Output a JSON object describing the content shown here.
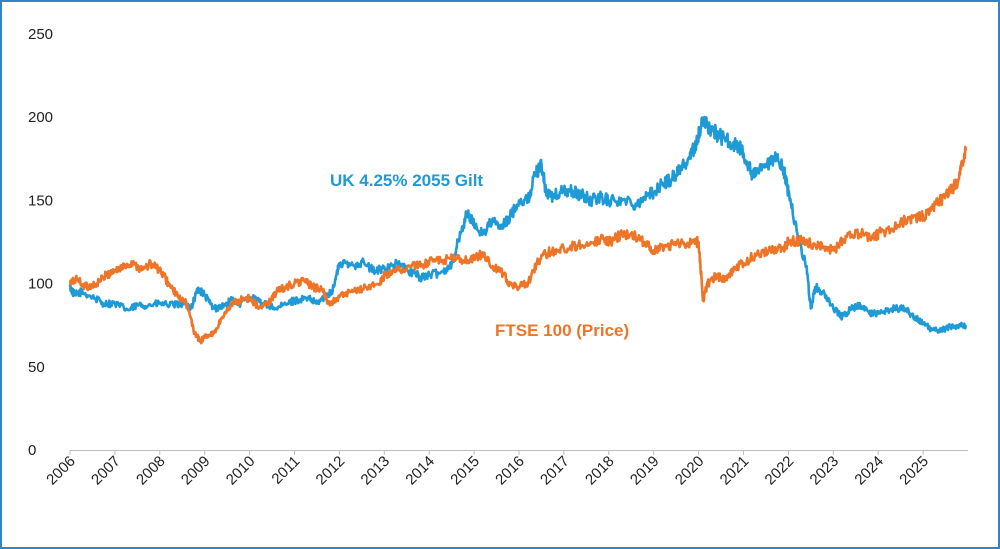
{
  "chart_data": {
    "type": "line",
    "title": "",
    "xlabel": "",
    "ylabel": "",
    "ylim": [
      0,
      250
    ],
    "xlim": [
      2006,
      2026
    ],
    "y_ticks": [
      "0",
      "50",
      "100",
      "150",
      "200",
      "250"
    ],
    "x_ticks": [
      "2006",
      "2007",
      "2008",
      "2009",
      "2010",
      "2011",
      "2012",
      "2013",
      "2014",
      "2015",
      "2016",
      "2017",
      "2018",
      "2019",
      "2020",
      "2021",
      "2022",
      "2023",
      "2024",
      "2025"
    ],
    "grid": false,
    "legend": "inline-labels",
    "series": [
      {
        "name": "UK 4.25% 2055 Gilt",
        "color": "#1E9AD6",
        "x": [
          2006.0,
          2006.1,
          2006.25,
          2006.5,
          2006.75,
          2007.0,
          2007.3,
          2007.5,
          2007.75,
          2008.0,
          2008.3,
          2008.5,
          2008.7,
          2008.85,
          2009.0,
          2009.2,
          2009.45,
          2009.6,
          2009.8,
          2010.0,
          2010.3,
          2010.6,
          2010.85,
          2011.0,
          2011.3,
          2011.5,
          2011.7,
          2011.85,
          2012.0,
          2012.3,
          2012.5,
          2012.8,
          2013.0,
          2013.3,
          2013.5,
          2013.8,
          2014.0,
          2014.3,
          2014.5,
          2014.7,
          2014.85,
          2015.0,
          2015.2,
          2015.4,
          2015.6,
          2015.8,
          2016.0,
          2016.2,
          2016.35,
          2016.5,
          2016.6,
          2016.75,
          2017.0,
          2017.2,
          2017.4,
          2017.6,
          2017.8,
          2018.0,
          2018.3,
          2018.6,
          2018.8,
          2019.0,
          2019.2,
          2019.4,
          2019.6,
          2019.8,
          2019.95,
          2020.1,
          2020.2,
          2020.3,
          2020.5,
          2020.7,
          2020.9,
          2021.0,
          2021.2,
          2021.4,
          2021.6,
          2021.75,
          2021.9,
          2022.0,
          2022.2,
          2022.4,
          2022.5,
          2022.6,
          2022.75,
          2023.0,
          2023.2,
          2023.4,
          2023.6,
          2023.8,
          2024.0,
          2024.3,
          2024.6,
          2024.8,
          2025.0,
          2025.2,
          2025.4,
          2025.6,
          2025.8,
          2025.95
        ],
        "values": [
          98,
          93,
          95,
          92,
          88,
          88,
          84,
          87,
          87,
          88,
          87,
          88,
          86,
          97,
          93,
          85,
          87,
          90,
          88,
          92,
          88,
          85,
          88,
          90,
          91,
          88,
          93,
          96,
          112,
          111,
          113,
          107,
          110,
          112,
          108,
          104,
          105,
          107,
          112,
          130,
          143,
          135,
          130,
          138,
          133,
          140,
          150,
          150,
          165,
          172,
          155,
          152,
          156,
          155,
          153,
          150,
          152,
          150,
          150,
          148,
          152,
          155,
          160,
          163,
          170,
          175,
          185,
          198,
          195,
          192,
          188,
          185,
          182,
          178,
          165,
          168,
          172,
          176,
          168,
          155,
          130,
          110,
          85,
          98,
          95,
          85,
          80,
          85,
          87,
          82,
          82,
          85,
          85,
          80,
          76,
          72,
          72,
          74,
          75,
          75
        ]
      },
      {
        "name": "FTSE 100 (Price)",
        "color": "#EE7528",
        "x": [
          2006.0,
          2006.15,
          2006.35,
          2006.6,
          2006.8,
          2007.0,
          2007.2,
          2007.4,
          2007.6,
          2007.8,
          2008.0,
          2008.2,
          2008.4,
          2008.6,
          2008.75,
          2008.9,
          2009.0,
          2009.2,
          2009.4,
          2009.6,
          2009.8,
          2010.0,
          2010.2,
          2010.4,
          2010.6,
          2010.8,
          2011.0,
          2011.2,
          2011.4,
          2011.6,
          2011.75,
          2012.0,
          2012.3,
          2012.6,
          2012.9,
          2013.0,
          2013.3,
          2013.6,
          2013.9,
          2014.0,
          2014.3,
          2014.6,
          2014.9,
          2015.0,
          2015.2,
          2015.4,
          2015.6,
          2015.8,
          2016.0,
          2016.2,
          2016.4,
          2016.6,
          2016.8,
          2017.0,
          2017.3,
          2017.6,
          2017.9,
          2018.0,
          2018.3,
          2018.6,
          2018.8,
          2019.0,
          2019.3,
          2019.6,
          2019.9,
          2020.0,
          2020.1,
          2020.2,
          2020.4,
          2020.6,
          2020.8,
          2021.0,
          2021.3,
          2021.6,
          2021.9,
          2022.0,
          2022.3,
          2022.6,
          2022.8,
          2023.0,
          2023.3,
          2023.6,
          2023.9,
          2024.0,
          2024.3,
          2024.6,
          2024.9,
          2025.0,
          2025.2,
          2025.4,
          2025.6,
          2025.8,
          2025.95
        ],
        "values": [
          100,
          103,
          98,
          100,
          105,
          108,
          110,
          113,
          108,
          112,
          108,
          100,
          92,
          88,
          72,
          65,
          68,
          70,
          80,
          88,
          90,
          92,
          85,
          88,
          95,
          98,
          100,
          102,
          98,
          97,
          88,
          92,
          95,
          98,
          100,
          105,
          108,
          110,
          112,
          113,
          114,
          115,
          113,
          115,
          118,
          110,
          107,
          100,
          98,
          100,
          113,
          118,
          120,
          121,
          123,
          125,
          127,
          125,
          130,
          128,
          125,
          120,
          123,
          124,
          125,
          125,
          90,
          100,
          105,
          102,
          110,
          112,
          118,
          120,
          122,
          125,
          126,
          123,
          122,
          120,
          128,
          130,
          128,
          130,
          133,
          138,
          140,
          140,
          145,
          150,
          155,
          163,
          180
        ]
      }
    ]
  }
}
